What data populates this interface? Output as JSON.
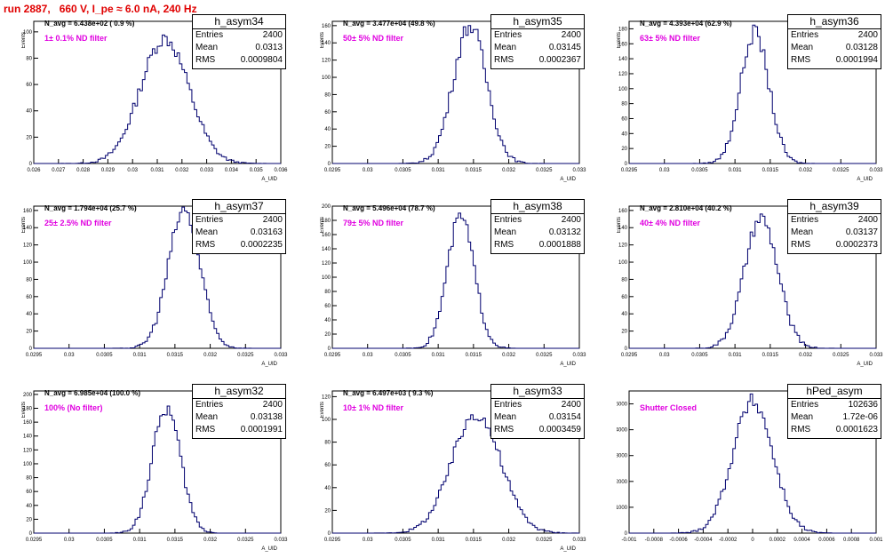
{
  "title": "run 2887,   660 V, I_pe ≈ 6.0 nA, 240 Hz",
  "colors": {
    "histogram": "#00006e",
    "label": "#e000e0",
    "title": "#e00000"
  },
  "panels": [
    {
      "name": "h_asym34",
      "entries": "2400",
      "mean": "0.0313",
      "rms": "0.0009804",
      "navg": "N_avg = 6.438e+02 ( 0.9 %)",
      "label": "1± 0.1% ND filter",
      "ylabel": "Events",
      "xlabel": "A_UID",
      "xlim": [
        0.026,
        0.036
      ],
      "ylim": [
        0,
        108
      ],
      "xticks": [
        "0.026",
        "0.027",
        "0.028",
        "0.029",
        "0.03",
        "0.031",
        "0.032",
        "0.033",
        "0.034",
        "0.035",
        "0.036"
      ],
      "yticks": [
        0,
        20,
        40,
        60,
        80,
        100
      ],
      "hist": {
        "mean": 0.0313,
        "sigma": 0.00098,
        "peak": 95
      }
    },
    {
      "name": "h_asym35",
      "entries": "2400",
      "mean": "0.03145",
      "rms": "0.0002367",
      "navg": "N_avg = 3.477e+04 (49.8 %)",
      "label": "50± 5% ND filter",
      "ylabel": "Events",
      "xlabel": "A_UID",
      "xlim": [
        0.0295,
        0.033
      ],
      "ylim": [
        0,
        165
      ],
      "xticks": [
        "0.0295",
        "0.03",
        "0.0305",
        "0.031",
        "0.0315",
        "0.032",
        "0.0325",
        "0.033"
      ],
      "yticks": [
        0,
        20,
        40,
        60,
        80,
        100,
        120,
        140,
        160
      ],
      "hist": {
        "mean": 0.03145,
        "sigma": 0.000237,
        "peak": 160
      }
    },
    {
      "name": "h_asym36",
      "entries": "2400",
      "mean": "0.03128",
      "rms": "0.0001994",
      "navg": "N_avg = 4.393e+04 (62.9 %)",
      "label": "63± 5% ND filter",
      "ylabel": "Events",
      "xlabel": "A_UID",
      "xlim": [
        0.0295,
        0.033
      ],
      "ylim": [
        0,
        190
      ],
      "xticks": [
        "0.0295",
        "0.03",
        "0.0305",
        "0.031",
        "0.0315",
        "0.032",
        "0.0325",
        "0.033"
      ],
      "yticks": [
        0,
        20,
        40,
        60,
        80,
        100,
        120,
        140,
        160,
        180
      ],
      "hist": {
        "mean": 0.03128,
        "sigma": 0.0002,
        "peak": 175
      }
    },
    {
      "name": "h_asym37",
      "entries": "2400",
      "mean": "0.03163",
      "rms": "0.0002235",
      "navg": "N_avg = 1.794e+04 (25.7 %)",
      "label": "25± 2.5% ND filter",
      "ylabel": "Events",
      "xlabel": "A_UID",
      "xlim": [
        0.0295,
        0.033
      ],
      "ylim": [
        0,
        165
      ],
      "xticks": [
        "0.0295",
        "0.03",
        "0.0305",
        "0.031",
        "0.0315",
        "0.032",
        "0.0325",
        "0.033"
      ],
      "yticks": [
        0,
        20,
        40,
        60,
        80,
        100,
        120,
        140,
        160
      ],
      "hist": {
        "mean": 0.03163,
        "sigma": 0.000224,
        "peak": 160
      }
    },
    {
      "name": "h_asym38",
      "entries": "2400",
      "mean": "0.03132",
      "rms": "0.0001888",
      "navg": "N_avg = 5.496e+04 (78.7 %)",
      "label": "79± 5% ND filter",
      "ylabel": "Events",
      "xlabel": "A_UID",
      "xlim": [
        0.0295,
        0.033
      ],
      "ylim": [
        0,
        200
      ],
      "xticks": [
        "0.0295",
        "0.03",
        "0.0305",
        "0.031",
        "0.0315",
        "0.032",
        "0.0325",
        "0.033"
      ],
      "yticks": [
        0,
        20,
        40,
        60,
        80,
        100,
        120,
        140,
        160,
        180,
        200
      ],
      "hist": {
        "mean": 0.03132,
        "sigma": 0.00019,
        "peak": 185
      }
    },
    {
      "name": "h_asym39",
      "entries": "2400",
      "mean": "0.03137",
      "rms": "0.0002373",
      "navg": "N_avg = 2.810e+04 (40.2 %)",
      "label": "40± 4% ND filter",
      "ylabel": "Events",
      "xlabel": "A_UID",
      "xlim": [
        0.0295,
        0.033
      ],
      "ylim": [
        0,
        165
      ],
      "xticks": [
        "0.0295",
        "0.03",
        "0.0305",
        "0.031",
        "0.0315",
        "0.032",
        "0.0325",
        "0.033"
      ],
      "yticks": [
        0,
        20,
        40,
        60,
        80,
        100,
        120,
        140,
        160
      ],
      "hist": {
        "mean": 0.03137,
        "sigma": 0.000237,
        "peak": 150
      }
    },
    {
      "name": "h_asym32",
      "entries": "2400",
      "mean": "0.03138",
      "rms": "0.0001991",
      "navg": "N_avg = 6.985e+04 (100.0 %)",
      "label": "100% (No filter)",
      "ylabel": "Events",
      "xlabel": "A_UID",
      "xlim": [
        0.0295,
        0.033
      ],
      "ylim": [
        0,
        205
      ],
      "xticks": [
        "0.0295",
        "0.03",
        "0.0305",
        "0.031",
        "0.0315",
        "0.032",
        "0.0325",
        "0.033"
      ],
      "yticks": [
        0,
        20,
        40,
        60,
        80,
        100,
        120,
        140,
        160,
        180,
        200
      ],
      "hist": {
        "mean": 0.03138,
        "sigma": 0.0002,
        "peak": 180
      }
    },
    {
      "name": "h_asym33",
      "entries": "2400",
      "mean": "0.03154",
      "rms": "0.0003459",
      "navg": "N_avg = 6.497e+03 ( 9.3 %)",
      "label": "10± 1% ND filter",
      "ylabel": "Events",
      "xlabel": "A_UID",
      "xlim": [
        0.0295,
        0.033
      ],
      "ylim": [
        0,
        125
      ],
      "xticks": [
        "0.0295",
        "0.03",
        "0.0305",
        "0.031",
        "0.0315",
        "0.032",
        "0.0325",
        "0.033"
      ],
      "yticks": [
        0,
        20,
        40,
        60,
        80,
        100,
        120
      ],
      "hist": {
        "mean": 0.03154,
        "sigma": 0.000346,
        "peak": 105
      }
    },
    {
      "name": "hPed_asym",
      "entries": "102636",
      "mean": "1.72e-06",
      "rms": "0.0001623",
      "navg": "",
      "label": "Shutter Closed",
      "ylabel": "",
      "xlabel": "",
      "xlim": [
        -0.001,
        0.001
      ],
      "ylim": [
        0,
        5500
      ],
      "xticks": [
        "-0.001",
        "-0.0008",
        "-0.0006",
        "-0.0004",
        "-0.0002",
        "0",
        "0.0002",
        "0.0004",
        "0.0006",
        "0.0008",
        "0.001"
      ],
      "yticks": [
        0,
        1000,
        2000,
        3000,
        4000,
        5000
      ],
      "hist": {
        "mean": 1.7e-06,
        "sigma": 0.000162,
        "peak": 5100
      }
    }
  ]
}
